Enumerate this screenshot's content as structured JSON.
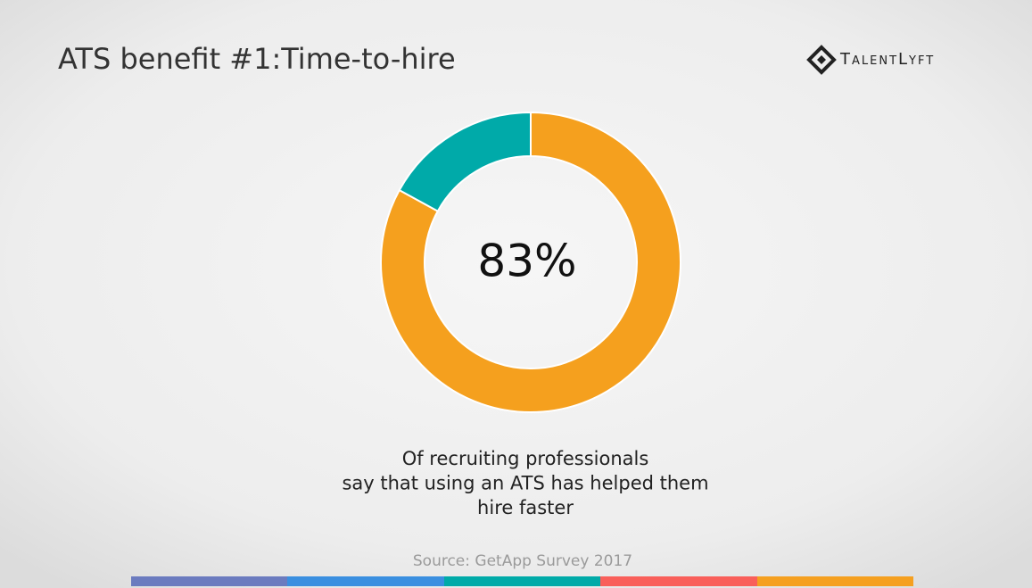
{
  "logo": "TalentLyft",
  "chart_data": {
    "type": "donut",
    "title": "ATS benefit #1:Time-to-hire",
    "values": [
      83,
      17
    ],
    "value_labels": [
      "83%",
      null
    ],
    "colors": [
      "#f5a01e",
      "#00aaa9"
    ],
    "caption": [
      "Of recruiting professionals",
      "say that using an ATS has helped them",
      "hire faster"
    ],
    "source": "Source: GetApp Survey 2017"
  }
}
